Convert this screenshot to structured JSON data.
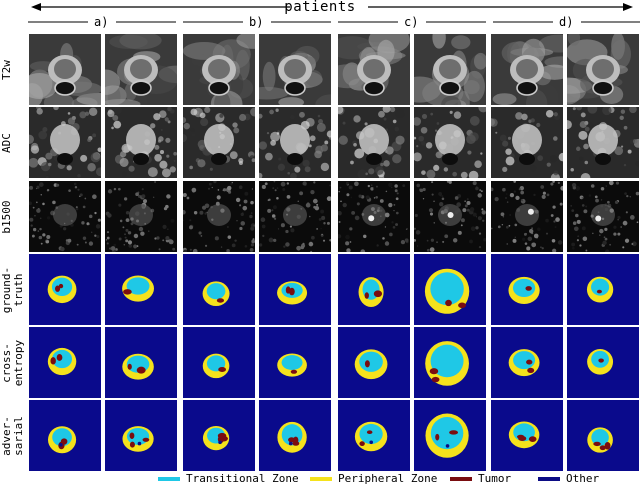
{
  "title": "patients",
  "groups": [
    "a)",
    "b)",
    "c)",
    "d)"
  ],
  "rows": [
    {
      "label": "T2w",
      "kind": "mri"
    },
    {
      "label": "ADC",
      "kind": "mri"
    },
    {
      "label": "b1500",
      "kind": "mri"
    },
    {
      "label": "ground-\ntruth",
      "kind": "seg"
    },
    {
      "label": "cross-\nentropy",
      "kind": "seg"
    },
    {
      "label": "adver-\nsarial",
      "kind": "seg"
    }
  ],
  "legend": [
    {
      "label": "Transitional Zone",
      "color": "#1fc8e6"
    },
    {
      "label": "Peripheral Zone",
      "color": "#f5e21c"
    },
    {
      "label": "Tumor",
      "color": "#7a0d10"
    },
    {
      "label": "Other",
      "color": "#0c0c85"
    }
  ],
  "colors": {
    "seg_background": "#0a0a8c",
    "mri_background": "#1a1a1a"
  }
}
